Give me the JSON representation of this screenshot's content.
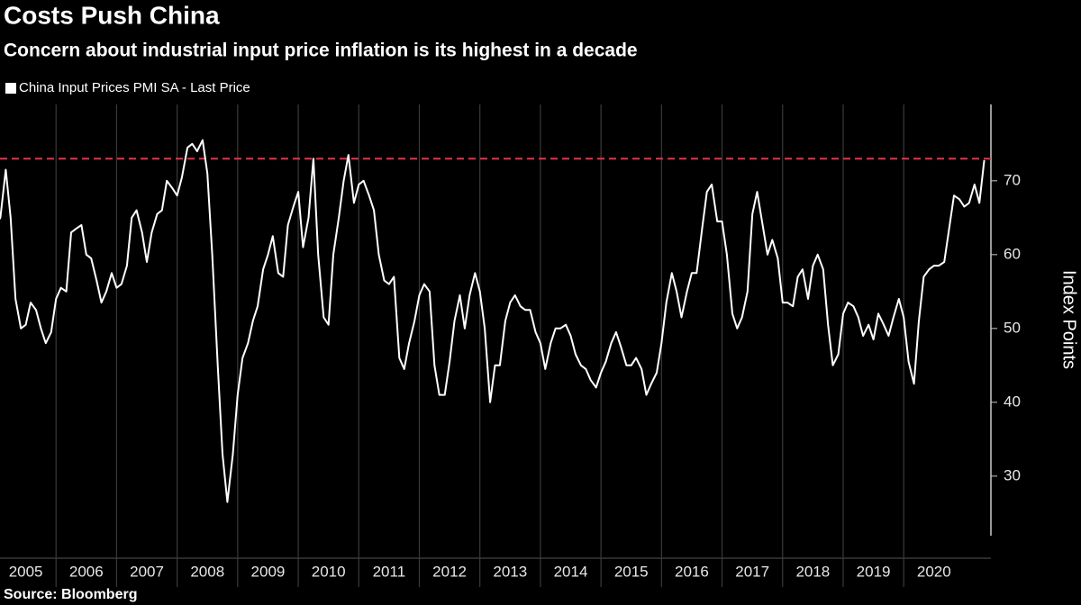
{
  "chart_data": {
    "type": "line",
    "title": "Costs Push China",
    "subtitle": "Concern about industrial input price inflation is its highest in a decade",
    "source": "Source: Bloomberg",
    "y_label": "Index Points",
    "reference_line": {
      "value": 73,
      "color": "#e8334a"
    },
    "grid": true,
    "xlim": [
      2005,
      2021.5
    ],
    "xticks": [
      2005,
      2006,
      2007,
      2008,
      2009,
      2010,
      2011,
      2012,
      2013,
      2014,
      2015,
      2016,
      2017,
      2018,
      2019,
      2020
    ],
    "ylim": [
      22.3,
      80.1
    ],
    "yticks": [
      30,
      40,
      50,
      60,
      70
    ],
    "x": [
      2005.0,
      2005.08,
      2005.17,
      2005.25,
      2005.33,
      2005.42,
      2005.5,
      2005.58,
      2005.67,
      2005.75,
      2005.83,
      2005.92,
      2006.0,
      2006.08,
      2006.17,
      2006.25,
      2006.33,
      2006.42,
      2006.5,
      2006.58,
      2006.67,
      2006.75,
      2006.83,
      2006.92,
      2007.0,
      2007.08,
      2007.17,
      2007.25,
      2007.33,
      2007.42,
      2007.5,
      2007.58,
      2007.67,
      2007.75,
      2007.83,
      2007.92,
      2008.0,
      2008.08,
      2008.17,
      2008.25,
      2008.33,
      2008.42,
      2008.5,
      2008.58,
      2008.67,
      2008.75,
      2008.83,
      2008.92,
      2009.0,
      2009.08,
      2009.17,
      2009.25,
      2009.33,
      2009.42,
      2009.5,
      2009.58,
      2009.67,
      2009.75,
      2009.83,
      2009.92,
      2010.0,
      2010.08,
      2010.17,
      2010.25,
      2010.33,
      2010.42,
      2010.5,
      2010.58,
      2010.67,
      2010.75,
      2010.83,
      2010.92,
      2011.0,
      2011.08,
      2011.17,
      2011.25,
      2011.33,
      2011.42,
      2011.5,
      2011.58,
      2011.67,
      2011.75,
      2011.83,
      2011.92,
      2012.0,
      2012.08,
      2012.17,
      2012.25,
      2012.33,
      2012.42,
      2012.5,
      2012.58,
      2012.67,
      2012.75,
      2012.83,
      2012.92,
      2013.0,
      2013.08,
      2013.17,
      2013.25,
      2013.33,
      2013.42,
      2013.5,
      2013.58,
      2013.67,
      2013.75,
      2013.83,
      2013.92,
      2014.0,
      2014.08,
      2014.17,
      2014.25,
      2014.33,
      2014.42,
      2014.5,
      2014.58,
      2014.67,
      2014.75,
      2014.83,
      2014.92,
      2015.0,
      2015.08,
      2015.17,
      2015.25,
      2015.33,
      2015.42,
      2015.5,
      2015.58,
      2015.67,
      2015.75,
      2015.83,
      2015.92,
      2016.0,
      2016.08,
      2016.17,
      2016.25,
      2016.33,
      2016.42,
      2016.5,
      2016.58,
      2016.67,
      2016.75,
      2016.83,
      2016.92,
      2017.0,
      2017.08,
      2017.17,
      2017.25,
      2017.33,
      2017.42,
      2017.5,
      2017.58,
      2017.67,
      2017.75,
      2017.83,
      2017.92,
      2018.0,
      2018.08,
      2018.17,
      2018.25,
      2018.33,
      2018.42,
      2018.5,
      2018.58,
      2018.67,
      2018.75,
      2018.83,
      2018.92,
      2019.0,
      2019.08,
      2019.17,
      2019.25,
      2019.33,
      2019.42,
      2019.5,
      2019.58,
      2019.67,
      2019.75,
      2019.83,
      2019.92,
      2020.0,
      2020.08,
      2020.17,
      2020.25,
      2020.33,
      2020.42,
      2020.5,
      2020.58,
      2020.67,
      2020.75,
      2020.83,
      2020.92,
      2021.0,
      2021.08,
      2021.17,
      2021.25,
      2021.33
    ],
    "series": [
      {
        "name": "China Input Prices PMI SA - Last Price",
        "color": "#ffffff",
        "values": [
          64,
          65,
          71.5,
          65,
          54,
          50,
          50.5,
          53.5,
          52.5,
          50,
          48,
          49.5,
          54,
          55.5,
          55,
          63,
          63.5,
          64,
          60,
          59.5,
          56.5,
          53.5,
          55,
          57.5,
          55.5,
          56,
          58.5,
          65,
          66,
          63,
          59,
          63,
          65.5,
          66,
          70,
          69,
          68,
          70.5,
          74.5,
          75,
          74,
          75.5,
          71,
          60,
          45,
          33,
          26.5,
          33,
          41,
          46,
          48,
          51,
          53,
          58,
          60,
          62.5,
          57.5,
          57,
          64,
          66.5,
          68.5,
          61,
          65,
          73,
          60,
          51.5,
          50.5,
          60,
          65,
          70,
          73.5,
          67,
          69.5,
          70,
          68,
          66,
          60,
          56.5,
          56,
          57,
          46,
          44.5,
          48,
          51,
          54.5,
          56,
          55,
          45,
          41,
          41,
          45.5,
          51,
          54.5,
          50,
          54.5,
          57.5,
          55,
          50,
          40,
          45,
          45,
          51,
          53.5,
          54.5,
          53,
          52.5,
          52.5,
          49.5,
          48,
          44.5,
          48,
          50,
          50,
          50.5,
          49,
          46.5,
          45,
          44.5,
          43,
          42,
          44,
          45.5,
          48,
          49.5,
          47.5,
          45,
          45,
          46,
          44.5,
          41,
          42.5,
          44,
          48,
          53.5,
          57.5,
          55,
          51.5,
          55,
          57.5,
          57.5,
          63.5,
          68.5,
          69.5,
          64.5,
          64.5,
          60,
          52,
          50,
          51.5,
          55,
          65.5,
          68.5,
          64,
          60,
          62,
          59.5,
          53.5,
          53.5,
          53,
          57,
          58,
          54,
          58.5,
          60,
          58,
          50.5,
          45,
          46.5,
          52,
          53.5,
          53,
          51.5,
          49,
          50.5,
          48.5,
          52,
          50.5,
          49,
          51.5,
          54,
          51.5,
          45.5,
          42.5,
          51,
          57,
          58,
          58.5,
          58.5,
          59,
          63.5,
          68,
          67.5,
          66.5,
          67,
          69.5,
          67,
          72.8
        ]
      }
    ]
  }
}
